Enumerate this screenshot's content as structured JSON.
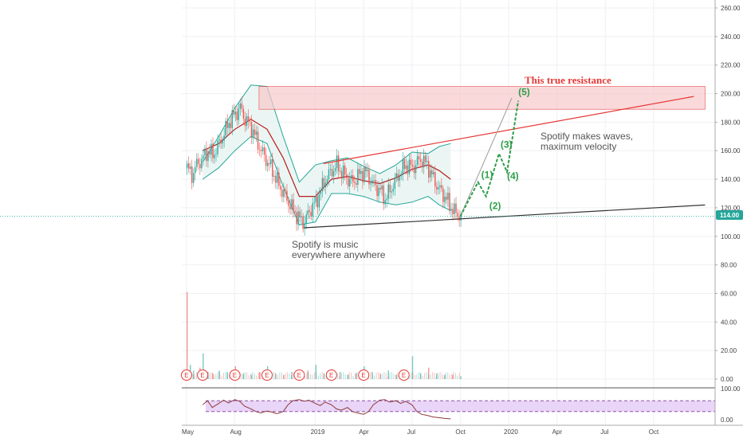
{
  "chart_data": {
    "type": "candlestick",
    "y_axis": {
      "ticks": [
        "260.00",
        "240.00",
        "220.00",
        "200.00",
        "180.00",
        "160.00",
        "140.00",
        "120.00",
        "100.00",
        "80.00",
        "60.00",
        "40.00",
        "20.00",
        "0.00"
      ],
      "tick_values": [
        260,
        240,
        220,
        200,
        180,
        160,
        140,
        120,
        100,
        80,
        60,
        40,
        20,
        0
      ],
      "range": [
        -7,
        266
      ],
      "last_price_label": "114.00",
      "last_price": 114
    },
    "x_axis": {
      "labels": [
        "May",
        "Aug",
        "2019",
        "Apr",
        "Jul",
        "Oct",
        "2020",
        "Apr",
        "Jul",
        "Oct"
      ],
      "label_months": [
        0,
        3,
        8,
        11,
        14,
        17,
        20,
        23,
        26,
        29
      ]
    },
    "rsi_axis": {
      "ticks": [
        "100.00",
        "0.00"
      ],
      "upper_band": 70,
      "lower_band": 30
    },
    "price_series": [
      [
        0,
        148
      ],
      [
        0.3,
        143
      ],
      [
        0.6,
        150
      ],
      [
        1,
        155
      ],
      [
        1.3,
        160
      ],
      [
        1.6,
        157
      ],
      [
        2,
        165
      ],
      [
        2.3,
        172
      ],
      [
        2.6,
        180
      ],
      [
        3,
        186
      ],
      [
        3.3,
        190
      ],
      [
        3.6,
        182
      ],
      [
        4,
        176
      ],
      [
        4.3,
        168
      ],
      [
        4.6,
        160
      ],
      [
        5,
        152
      ],
      [
        5.3,
        146
      ],
      [
        5.6,
        138
      ],
      [
        6,
        130
      ],
      [
        6.3,
        124
      ],
      [
        6.6,
        118
      ],
      [
        7,
        112
      ],
      [
        7.3,
        110
      ],
      [
        7.6,
        118
      ],
      [
        8,
        124
      ],
      [
        8.3,
        132
      ],
      [
        8.6,
        140
      ],
      [
        9,
        146
      ],
      [
        9.3,
        150
      ],
      [
        9.6,
        145
      ],
      [
        10,
        140
      ],
      [
        10.3,
        138
      ],
      [
        10.6,
        142
      ],
      [
        11,
        146
      ],
      [
        11.3,
        141
      ],
      [
        11.6,
        136
      ],
      [
        12,
        132
      ],
      [
        12.3,
        126
      ],
      [
        12.6,
        132
      ],
      [
        13,
        140
      ],
      [
        13.3,
        146
      ],
      [
        13.6,
        150
      ],
      [
        14,
        148
      ],
      [
        14.3,
        152
      ],
      [
        14.6,
        154
      ],
      [
        15,
        148
      ],
      [
        15.3,
        140
      ],
      [
        15.6,
        134
      ],
      [
        16,
        128
      ],
      [
        16.3,
        122
      ],
      [
        16.6,
        117
      ],
      [
        17,
        114
      ]
    ],
    "bollinger": {
      "upper": [
        [
          1,
          152
        ],
        [
          2,
          170
        ],
        [
          3,
          190
        ],
        [
          4,
          206
        ],
        [
          5,
          205
        ],
        [
          6,
          170
        ],
        [
          7,
          138
        ],
        [
          8,
          150
        ],
        [
          9,
          153
        ],
        [
          10,
          155
        ],
        [
          11,
          149
        ],
        [
          12,
          144
        ],
        [
          13,
          150
        ],
        [
          14,
          159
        ],
        [
          15,
          158
        ],
        [
          15.7,
          163
        ],
        [
          16.4,
          165
        ]
      ],
      "middle": [
        [
          1,
          160
        ],
        [
          2,
          165
        ],
        [
          3,
          175
        ],
        [
          4,
          182
        ],
        [
          5,
          175
        ],
        [
          6,
          155
        ],
        [
          7,
          128
        ],
        [
          8,
          128
        ],
        [
          9,
          140
        ],
        [
          10,
          142
        ],
        [
          11,
          139
        ],
        [
          12,
          137
        ],
        [
          13,
          141
        ],
        [
          14,
          147
        ],
        [
          15,
          150
        ],
        [
          15.7,
          146
        ],
        [
          16.4,
          140
        ]
      ],
      "lower": [
        [
          1,
          140
        ],
        [
          2,
          148
        ],
        [
          3,
          160
        ],
        [
          4,
          170
        ],
        [
          5,
          165
        ],
        [
          6,
          135
        ],
        [
          7,
          108
        ],
        [
          8,
          110
        ],
        [
          9,
          130
        ],
        [
          10,
          130
        ],
        [
          11,
          128
        ],
        [
          12,
          124
        ],
        [
          13,
          122
        ],
        [
          14,
          124
        ],
        [
          15,
          128
        ],
        [
          15.7,
          122
        ],
        [
          16.4,
          118
        ]
      ]
    },
    "volume": [
      [
        0,
        61
      ],
      [
        0.2,
        10
      ],
      [
        0.4,
        6
      ],
      [
        0.8,
        8
      ],
      [
        1,
        18
      ],
      [
        1.3,
        5
      ],
      [
        1.6,
        4
      ],
      [
        2,
        6
      ],
      [
        2.5,
        5
      ],
      [
        3,
        9
      ],
      [
        3.5,
        4
      ],
      [
        4,
        3
      ],
      [
        4.5,
        5
      ],
      [
        5,
        9
      ],
      [
        5.5,
        4
      ],
      [
        6,
        3
      ],
      [
        6.5,
        5
      ],
      [
        7,
        4
      ],
      [
        7.5,
        6
      ],
      [
        8,
        10
      ],
      [
        8.5,
        4
      ],
      [
        9,
        7
      ],
      [
        9.5,
        5
      ],
      [
        10,
        3
      ],
      [
        10.5,
        4
      ],
      [
        11,
        9
      ],
      [
        11.5,
        5
      ],
      [
        12,
        4
      ],
      [
        12.5,
        6
      ],
      [
        13,
        3
      ],
      [
        13.5,
        5
      ],
      [
        14,
        16
      ],
      [
        14.5,
        4
      ],
      [
        15,
        8
      ],
      [
        15.5,
        4
      ],
      [
        16,
        3
      ],
      [
        16.5,
        3
      ],
      [
        17,
        2
      ]
    ],
    "earnings_markers": [
      0,
      1,
      3,
      5,
      7,
      9,
      11,
      13.5
    ],
    "rsi": [
      [
        1,
        55
      ],
      [
        1.3,
        70
      ],
      [
        1.6,
        45
      ],
      [
        2,
        60
      ],
      [
        2.3,
        72
      ],
      [
        2.6,
        62
      ],
      [
        3,
        74
      ],
      [
        3.3,
        68
      ],
      [
        3.6,
        50
      ],
      [
        4,
        40
      ],
      [
        4.3,
        30
      ],
      [
        4.6,
        25
      ],
      [
        5,
        32
      ],
      [
        5.3,
        28
      ],
      [
        5.6,
        22
      ],
      [
        6,
        30
      ],
      [
        6.3,
        55
      ],
      [
        6.6,
        70
      ],
      [
        7,
        74
      ],
      [
        7.3,
        68
      ],
      [
        7.6,
        72
      ],
      [
        8,
        60
      ],
      [
        8.3,
        52
      ],
      [
        8.6,
        65
      ],
      [
        9,
        55
      ],
      [
        9.3,
        40
      ],
      [
        9.6,
        35
      ],
      [
        10,
        45
      ],
      [
        10.3,
        30
      ],
      [
        10.6,
        25
      ],
      [
        11,
        20
      ],
      [
        11.3,
        30
      ],
      [
        11.6,
        55
      ],
      [
        12,
        72
      ],
      [
        12.3,
        74
      ],
      [
        12.6,
        65
      ],
      [
        13,
        70
      ],
      [
        13.3,
        60
      ],
      [
        13.6,
        68
      ],
      [
        14,
        55
      ],
      [
        14.3,
        30
      ],
      [
        14.6,
        20
      ],
      [
        15,
        15
      ],
      [
        15.3,
        10
      ],
      [
        15.6,
        8
      ],
      [
        16,
        5
      ],
      [
        16.4,
        3
      ]
    ],
    "drawings": {
      "resistance_zone": {
        "x0": 4.5,
        "x1": 32.2,
        "y0": 189,
        "y1": 205
      },
      "upper_trendline": {
        "x0": 8.5,
        "y0": 151,
        "x1": 31.5,
        "y1": 198
      },
      "lower_trendline": {
        "x0": 7.3,
        "y0": 106,
        "x1": 32.2,
        "y1": 122
      },
      "price_line": 114,
      "gray_projection": {
        "x0": 17,
        "y0": 114,
        "x1": 20.2,
        "y1": 197
      },
      "wave_path": [
        [
          17,
          114
        ],
        [
          18.1,
          138
        ],
        [
          18.6,
          128
        ],
        [
          19.4,
          158
        ],
        [
          19.9,
          145
        ],
        [
          20.6,
          195
        ]
      ],
      "wave_labels": [
        {
          "text": "(1)",
          "x": 18.3,
          "y": 141
        },
        {
          "text": "(2)",
          "x": 18.8,
          "y": 119
        },
        {
          "text": "(3)",
          "x": 19.5,
          "y": 162
        },
        {
          "text": "(4)",
          "x": 19.9,
          "y": 140
        },
        {
          "text": "(5)",
          "x": 20.6,
          "y": 199
        }
      ]
    },
    "annotations": {
      "resistance": "This true resistance",
      "waves_line1": "Spotify makes waves,",
      "waves_line2": "maximum velocity",
      "music_line1": "Spotify is music",
      "music_line2": "everywhere anywhere"
    },
    "earnings_symbol": "E",
    "colors": {
      "up": "#26a69a",
      "down": "#ef5350",
      "bb_band": "#26a69a",
      "bb_fill": "#e6f4f1",
      "bb_middle": "#b71c1c",
      "resistance_fill": "#f8c9cc",
      "resistance_stroke": "#e53935",
      "upper_trend": "#e53935",
      "lower_trend": "#333333",
      "wave": "#2e9e4a",
      "rsi_line": "#8d3a3a",
      "rsi_fill": "#e9d5f7",
      "rsi_band": "#7b3fa0",
      "price_tag": "#26a69a"
    }
  }
}
